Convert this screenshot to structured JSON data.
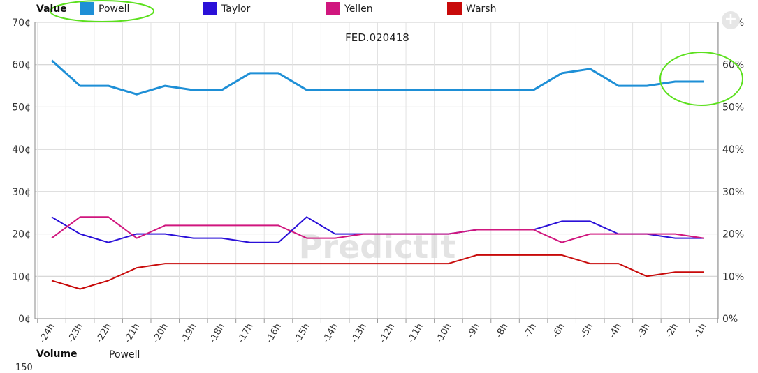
{
  "legend": {
    "title": "Value",
    "items": [
      {
        "name": "Powell",
        "color": "#1e8fd6"
      },
      {
        "name": "Taylor",
        "color": "#2a10d8"
      },
      {
        "name": "Yellen",
        "color": "#d0167e"
      },
      {
        "name": "Warsh",
        "color": "#c80a0a"
      }
    ]
  },
  "footer": {
    "volume_label": "Volume",
    "series_label": "Powell",
    "axis_tick": "150"
  },
  "watermark": "PredictIt",
  "icons": {
    "add": "plus-icon"
  },
  "chart_data": {
    "type": "line",
    "title": "FED.020418",
    "categories": [
      "-24h",
      "-23h",
      "-22h",
      "-21h",
      "-20h",
      "-19h",
      "-18h",
      "-17h",
      "-16h",
      "-15h",
      "-14h",
      "-13h",
      "-12h",
      "-11h",
      "-10h",
      "-9h",
      "-8h",
      "-7h",
      "-6h",
      "-5h",
      "-4h",
      "-3h",
      "-2h",
      "-1h"
    ],
    "y_left_ticks": [
      "0¢",
      "10¢",
      "20¢",
      "30¢",
      "40¢",
      "50¢",
      "60¢",
      "70¢"
    ],
    "y_right_ticks": [
      "0%",
      "10%",
      "20%",
      "30%",
      "40%",
      "50%",
      "60%",
      "70%"
    ],
    "ylim": [
      0,
      70
    ],
    "grid": true,
    "series": [
      {
        "name": "Powell",
        "color": "#1e8fd6",
        "values": [
          61,
          55,
          55,
          53,
          55,
          54,
          54,
          58,
          58,
          54,
          54,
          54,
          54,
          54,
          54,
          54,
          54,
          54,
          58,
          59,
          55,
          55,
          56,
          56
        ]
      },
      {
        "name": "Taylor",
        "color": "#2a10d8",
        "values": [
          24,
          20,
          18,
          20,
          20,
          19,
          19,
          18,
          18,
          24,
          20,
          20,
          20,
          20,
          20,
          21,
          21,
          21,
          23,
          23,
          20,
          20,
          19,
          19
        ]
      },
      {
        "name": "Yellen",
        "color": "#d0167e",
        "values": [
          19,
          24,
          24,
          19,
          22,
          22,
          22,
          22,
          22,
          19,
          19,
          20,
          20,
          20,
          20,
          21,
          21,
          21,
          18,
          20,
          20,
          20,
          20,
          19
        ]
      },
      {
        "name": "Warsh",
        "color": "#c80a0a",
        "values": [
          9,
          7,
          9,
          12,
          13,
          13,
          13,
          13,
          13,
          13,
          13,
          13,
          13,
          13,
          13,
          15,
          15,
          15,
          15,
          13,
          13,
          10,
          11,
          11
        ]
      }
    ]
  }
}
